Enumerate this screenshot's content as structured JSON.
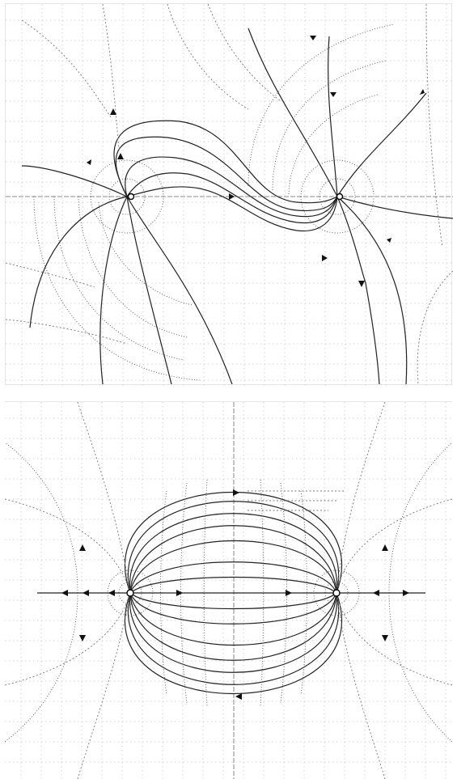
{
  "figure": {
    "top_panel": {
      "charges": [
        {
          "id": "left",
          "label": "",
          "sign": "unknown"
        },
        {
          "id": "right",
          "label": "",
          "sign": "unknown"
        }
      ]
    },
    "bottom_panel": {
      "charges": [
        {
          "id": "left",
          "label": "",
          "sign": "unknown"
        },
        {
          "id": "right",
          "label": "",
          "sign": "unknown"
        }
      ]
    }
  },
  "colors": {
    "background": "#ffffff",
    "field_lines": "#222222",
    "grid": "#c8c8c8"
  }
}
